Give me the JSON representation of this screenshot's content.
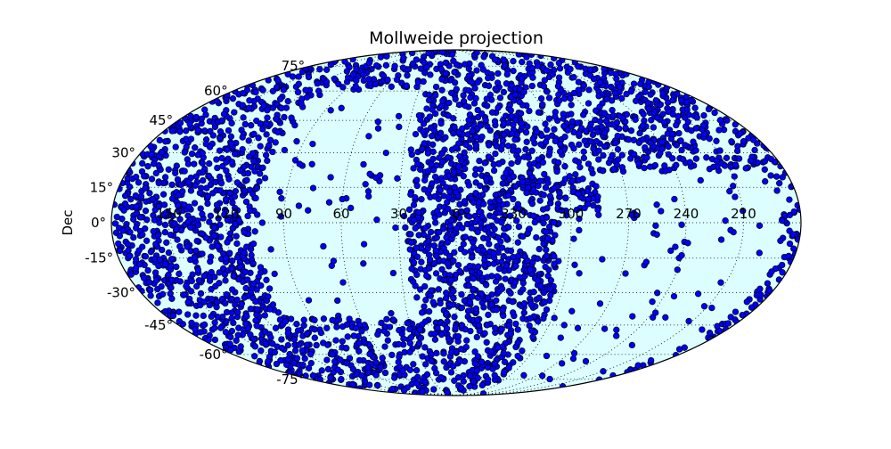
{
  "chart_data": {
    "type": "scatter",
    "projection": "mollweide",
    "title": "Mollweide projection",
    "ylabel": "Dec",
    "xlabel": "",
    "lat_ticks": [
      {
        "value": 75,
        "label": "75°"
      },
      {
        "value": 60,
        "label": "60°"
      },
      {
        "value": 45,
        "label": "45°"
      },
      {
        "value": 30,
        "label": "30°"
      },
      {
        "value": 15,
        "label": "15°"
      },
      {
        "value": 0,
        "label": "0°"
      },
      {
        "value": -15,
        "label": "-15°"
      },
      {
        "value": -30,
        "label": "-30°"
      },
      {
        "value": -45,
        "label": "-45°"
      },
      {
        "value": -60,
        "label": "-60°"
      },
      {
        "value": -75,
        "label": "-75°"
      }
    ],
    "lon_ticks": [
      {
        "value": 150,
        "label": "150"
      },
      {
        "value": 120,
        "label": "120"
      },
      {
        "value": 90,
        "label": "90"
      },
      {
        "value": 60,
        "label": "60"
      },
      {
        "value": 30,
        "label": "30"
      },
      {
        "value": 0,
        "label": "0"
      },
      {
        "value": 330,
        "label": "330"
      },
      {
        "value": 300,
        "label": "300"
      },
      {
        "value": 270,
        "label": "270"
      },
      {
        "value": 240,
        "label": "240"
      },
      {
        "value": 210,
        "label": "210"
      }
    ],
    "ra_direction": "increasing-left",
    "grid": true,
    "series": [
      {
        "marker_color": "#0000ff",
        "edge_color": "#000000",
        "density_note": "thousands of points; dense everywhere except a sparse loop around RA 90-30 / Dec -45..60 and the region RA 300-190, Dec +20..-75",
        "points_sample": [
          [
            160,
            10
          ],
          [
            140,
            -20
          ],
          [
            175,
            40
          ],
          [
            130,
            50
          ],
          [
            150,
            -50
          ],
          [
            100,
            -60
          ],
          [
            20,
            55
          ],
          [
            350,
            40
          ],
          [
            330,
            10
          ],
          [
            320,
            -20
          ],
          [
            340,
            -45
          ],
          [
            20,
            -60
          ],
          [
            250,
            65
          ],
          [
            200,
            55
          ],
          [
            220,
            35
          ],
          [
            280,
            40
          ],
          [
            60,
            10
          ],
          [
            70,
            -10
          ],
          [
            40,
            30
          ],
          [
            80,
            25
          ],
          [
            255,
            -5
          ],
          [
            240,
            -20
          ],
          [
            275,
            -35
          ],
          [
            230,
            -55
          ],
          [
            210,
            5
          ],
          [
            290,
            -45
          ],
          [
            265,
            -65
          ],
          [
            245,
            10
          ]
        ]
      }
    ],
    "colors": {
      "background": "#dcfefe",
      "marker": "#0000ff",
      "marker_edge": "#000000"
    }
  }
}
